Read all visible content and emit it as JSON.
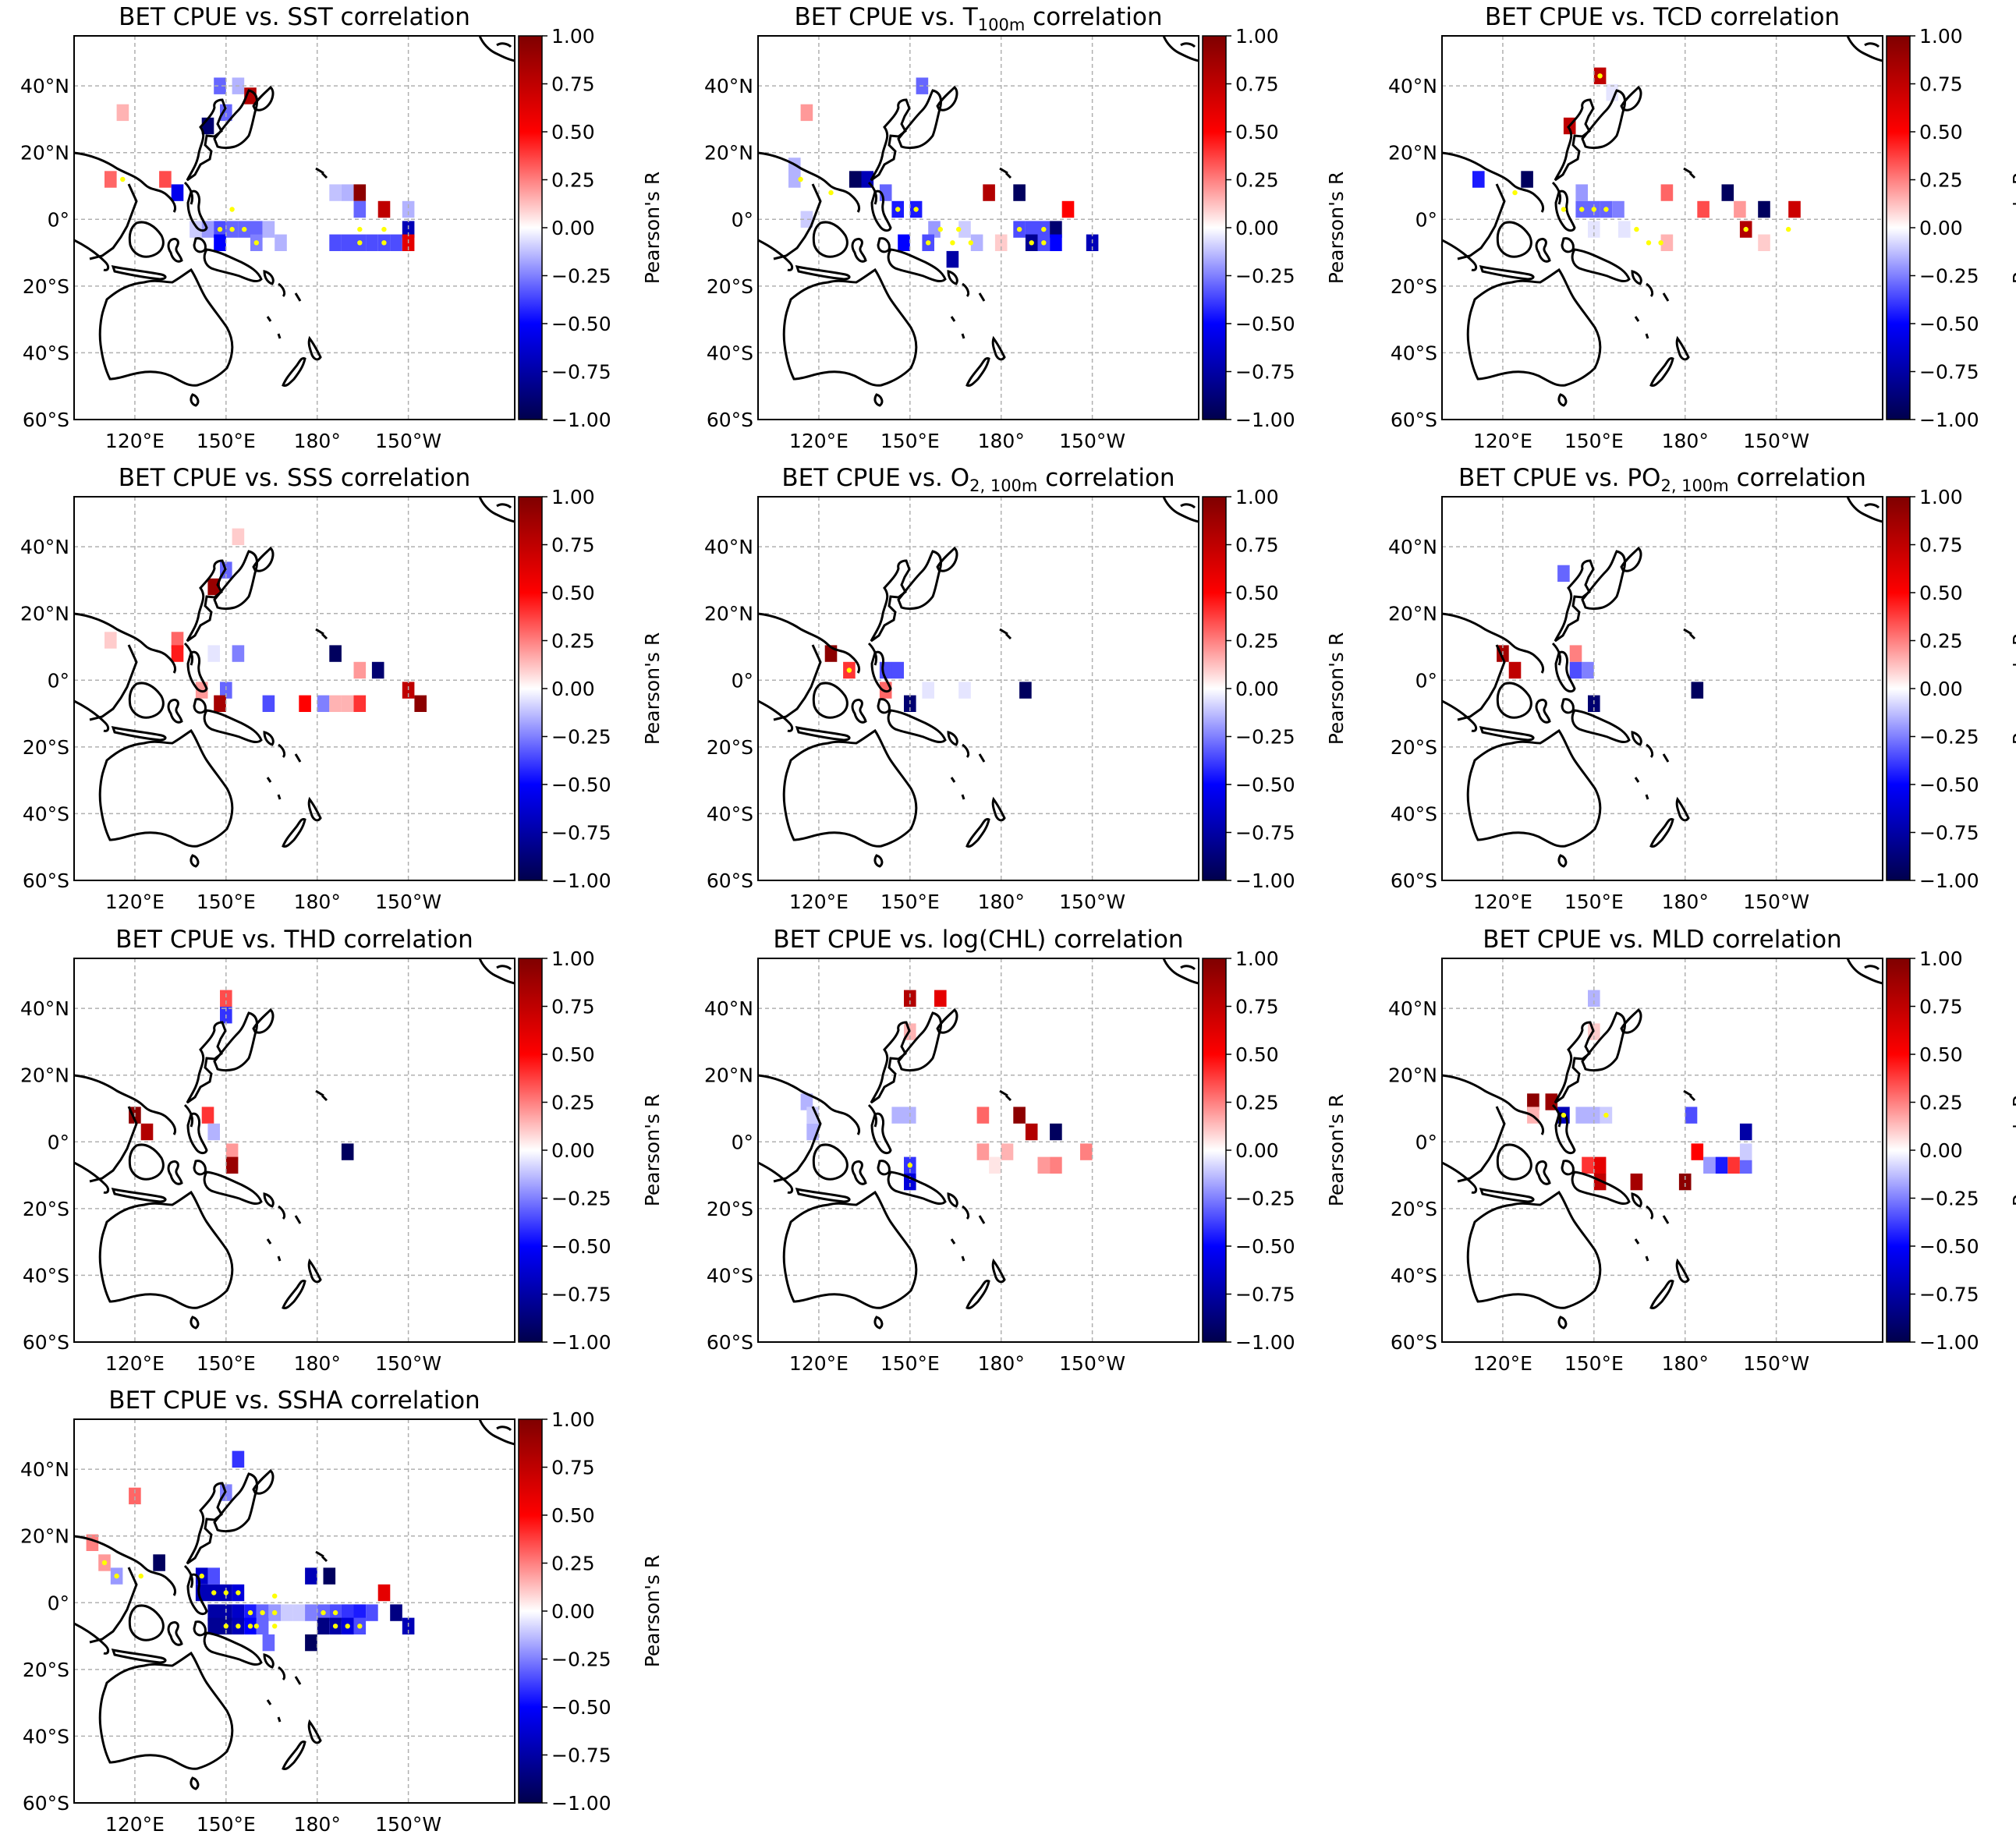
{
  "figure": {
    "colorbar": {
      "label": "Pearson's R",
      "ticks": [
        "1.00",
        "0.75",
        "0.50",
        "0.25",
        "0.00",
        "−0.25",
        "−0.50",
        "−0.75",
        "−1.00"
      ],
      "range": [
        -1,
        1
      ],
      "colormap": [
        "#00004c",
        "#0000ff",
        "#ffffff",
        "#ff0000",
        "#7f0000"
      ]
    },
    "axes": {
      "lon_ticks": [
        "120°E",
        "150°E",
        "180°",
        "150°W"
      ],
      "lon_values": [
        120,
        150,
        180,
        210
      ],
      "lat_ticks": [
        "40°N",
        "20°N",
        "0°",
        "20°S",
        "40°S",
        "60°S"
      ],
      "lat_values": [
        40,
        20,
        0,
        -20,
        -40,
        -60
      ],
      "lon_range": [
        100,
        245
      ],
      "lat_range": [
        -60,
        55
      ],
      "grid": "dashed"
    },
    "significance_color": "#ffff00"
  },
  "chart_data": [
    {
      "type": "heatmap",
      "title_pre": "BET CPUE vs. SST",
      "title_sub": "",
      "title_post": " correlation",
      "cells": [
        [
          148,
          40,
          -0.3
        ],
        [
          154,
          40,
          -0.15
        ],
        [
          158,
          37,
          0.8
        ],
        [
          116,
          32,
          0.15
        ],
        [
          144,
          28,
          -0.9
        ],
        [
          150,
          32,
          -0.3
        ],
        [
          112,
          12,
          0.3
        ],
        [
          130,
          12,
          0.35
        ],
        [
          134,
          8,
          -0.55
        ],
        [
          186,
          8,
          -0.12
        ],
        [
          190,
          8,
          -0.15
        ],
        [
          194,
          8,
          0.95
        ],
        [
          202,
          3,
          0.75
        ],
        [
          210,
          3,
          -0.15
        ],
        [
          194,
          3,
          -0.3
        ],
        [
          140,
          -3,
          -0.1
        ],
        [
          144,
          -3,
          -0.2
        ],
        [
          148,
          -3,
          -0.35
        ],
        [
          152,
          -3,
          -0.3
        ],
        [
          156,
          -3,
          -0.3
        ],
        [
          160,
          -3,
          -0.3
        ],
        [
          164,
          -3,
          -0.15
        ],
        [
          148,
          -7,
          -0.5
        ],
        [
          160,
          -7,
          -0.25
        ],
        [
          168,
          -7,
          -0.15
        ],
        [
          190,
          -7,
          -0.35
        ],
        [
          194,
          -7,
          -0.35
        ],
        [
          198,
          -7,
          -0.35
        ],
        [
          202,
          -7,
          -0.35
        ],
        [
          206,
          -7,
          -0.35
        ],
        [
          210,
          -3,
          -0.7
        ],
        [
          210,
          -7,
          0.6
        ],
        [
          186,
          -7,
          -0.35
        ]
      ],
      "sig": [
        [
          148,
          -3
        ],
        [
          152,
          -3
        ],
        [
          156,
          -3
        ],
        [
          160,
          -7
        ],
        [
          152,
          3
        ],
        [
          194,
          -3
        ],
        [
          194,
          -7
        ],
        [
          202,
          -3
        ],
        [
          202,
          -7
        ],
        [
          116,
          12
        ]
      ]
    },
    {
      "type": "heatmap",
      "title_pre": "BET CPUE vs. T",
      "title_sub": "100m",
      "title_post": " correlation",
      "cells": [
        [
          154,
          40,
          -0.3
        ],
        [
          116,
          32,
          0.2
        ],
        [
          112,
          12,
          -0.15
        ],
        [
          112,
          16,
          -0.15
        ],
        [
          132,
          12,
          -0.95
        ],
        [
          136,
          12,
          -0.7
        ],
        [
          142,
          8,
          -0.3
        ],
        [
          146,
          3,
          -0.45
        ],
        [
          152,
          3,
          -0.45
        ],
        [
          158,
          -3,
          -0.2
        ],
        [
          148,
          -7,
          -0.5
        ],
        [
          156,
          -7,
          -0.35
        ],
        [
          164,
          -12,
          -0.75
        ],
        [
          172,
          -7,
          -0.15
        ],
        [
          176,
          8,
          0.8
        ],
        [
          186,
          8,
          -0.95
        ],
        [
          186,
          -3,
          -0.35
        ],
        [
          190,
          -3,
          -0.35
        ],
        [
          194,
          -3,
          -0.35
        ],
        [
          198,
          -3,
          -0.9
        ],
        [
          202,
          3,
          0.5
        ],
        [
          198,
          -7,
          -0.5
        ],
        [
          190,
          -7,
          -0.8
        ],
        [
          194,
          -7,
          -0.35
        ],
        [
          210,
          -7,
          -0.7
        ],
        [
          180,
          -7,
          0.1
        ],
        [
          116,
          0,
          -0.1
        ],
        [
          168,
          -3,
          -0.1
        ]
      ],
      "sig": [
        [
          146,
          3
        ],
        [
          152,
          3
        ],
        [
          160,
          -3
        ],
        [
          166,
          -3
        ],
        [
          170,
          -7
        ],
        [
          164,
          -7
        ],
        [
          186,
          -3
        ],
        [
          194,
          -3
        ],
        [
          190,
          -7
        ],
        [
          194,
          -7
        ],
        [
          124,
          8
        ],
        [
          114,
          12
        ],
        [
          156,
          -7
        ]
      ]
    },
    {
      "type": "heatmap",
      "title_pre": "BET CPUE vs. TCD",
      "title_sub": "",
      "title_post": " correlation",
      "cells": [
        [
          152,
          43,
          0.75
        ],
        [
          156,
          38,
          -0.05
        ],
        [
          142,
          28,
          0.75
        ],
        [
          112,
          12,
          -0.45
        ],
        [
          128,
          12,
          -0.95
        ],
        [
          146,
          8,
          -0.2
        ],
        [
          146,
          3,
          -0.3
        ],
        [
          150,
          3,
          -0.3
        ],
        [
          154,
          3,
          -0.3
        ],
        [
          158,
          3,
          -0.25
        ],
        [
          174,
          8,
          0.3
        ],
        [
          186,
          3,
          0.35
        ],
        [
          194,
          8,
          -0.95
        ],
        [
          198,
          3,
          0.2
        ],
        [
          206,
          3,
          -0.95
        ],
        [
          216,
          3,
          0.7
        ],
        [
          200,
          -3,
          0.8
        ],
        [
          206,
          -7,
          0.1
        ],
        [
          174,
          -7,
          0.15
        ],
        [
          160,
          -3,
          -0.05
        ],
        [
          150,
          -3,
          -0.05
        ]
      ],
      "sig": [
        [
          152,
          43
        ],
        [
          146,
          3
        ],
        [
          150,
          3
        ],
        [
          154,
          3
        ],
        [
          140,
          3
        ],
        [
          164,
          -3
        ],
        [
          168,
          -7
        ],
        [
          172,
          -7
        ],
        [
          200,
          -3
        ],
        [
          214,
          -3
        ],
        [
          124,
          8
        ]
      ]
    },
    {
      "type": "heatmap",
      "title_pre": "BET CPUE vs. SSS",
      "title_sub": "",
      "title_post": " correlation",
      "cells": [
        [
          154,
          43,
          0.1
        ],
        [
          150,
          33,
          -0.3
        ],
        [
          146,
          28,
          0.9
        ],
        [
          112,
          12,
          0.1
        ],
        [
          134,
          12,
          0.3
        ],
        [
          134,
          8,
          0.45
        ],
        [
          146,
          8,
          -0.05
        ],
        [
          154,
          8,
          -0.25
        ],
        [
          186,
          8,
          -0.95
        ],
        [
          200,
          3,
          -0.9
        ],
        [
          194,
          3,
          0.2
        ],
        [
          142,
          -3,
          0.2
        ],
        [
          150,
          -3,
          -0.3
        ],
        [
          148,
          -7,
          0.85
        ],
        [
          164,
          -7,
          -0.35
        ],
        [
          176,
          -7,
          0.5
        ],
        [
          182,
          -7,
          -0.25
        ],
        [
          186,
          -7,
          0.15
        ],
        [
          190,
          -7,
          0.15
        ],
        [
          194,
          -7,
          0.4
        ],
        [
          210,
          -3,
          0.75
        ],
        [
          214,
          -7,
          0.95
        ]
      ],
      "sig": []
    },
    {
      "type": "heatmap",
      "title_pre": "BET CPUE vs. O",
      "title_sub": "2, 100m",
      "title_post": " correlation",
      "cells": [
        [
          124,
          8,
          0.95
        ],
        [
          130,
          3,
          0.4
        ],
        [
          142,
          3,
          -0.35
        ],
        [
          146,
          3,
          -0.35
        ],
        [
          142,
          -3,
          0.3
        ],
        [
          150,
          -7,
          -0.9
        ],
        [
          188,
          -3,
          -0.95
        ],
        [
          156,
          -3,
          -0.05
        ],
        [
          168,
          -3,
          -0.05
        ]
      ],
      "sig": [
        [
          130,
          3
        ]
      ]
    },
    {
      "type": "heatmap",
      "title_pre": "BET CPUE vs. PO",
      "title_sub": "2, 100m",
      "title_post": " correlation",
      "cells": [
        [
          140,
          32,
          -0.3
        ],
        [
          120,
          8,
          0.85
        ],
        [
          124,
          3,
          0.75
        ],
        [
          144,
          8,
          0.25
        ],
        [
          144,
          3,
          -0.35
        ],
        [
          148,
          3,
          -0.25
        ],
        [
          150,
          -7,
          -0.9
        ],
        [
          184,
          -3,
          -0.95
        ]
      ],
      "sig": []
    },
    {
      "type": "heatmap",
      "title_pre": "BET CPUE vs. THD",
      "title_sub": "",
      "title_post": " correlation",
      "cells": [
        [
          150,
          43,
          0.35
        ],
        [
          150,
          38,
          -0.4
        ],
        [
          120,
          8,
          0.95
        ],
        [
          124,
          3,
          0.8
        ],
        [
          144,
          8,
          0.4
        ],
        [
          146,
          3,
          -0.15
        ],
        [
          152,
          -3,
          0.2
        ],
        [
          152,
          -7,
          0.9
        ],
        [
          190,
          -3,
          -0.95
        ]
      ],
      "sig": []
    },
    {
      "type": "heatmap",
      "title_pre": "BET CPUE vs. log(CHL)",
      "title_sub": "",
      "title_post": " correlation",
      "cells": [
        [
          150,
          43,
          0.8
        ],
        [
          160,
          43,
          0.6
        ],
        [
          150,
          33,
          0.15
        ],
        [
          116,
          12,
          -0.15
        ],
        [
          118,
          8,
          -0.1
        ],
        [
          118,
          3,
          -0.15
        ],
        [
          146,
          8,
          -0.15
        ],
        [
          150,
          8,
          -0.15
        ],
        [
          174,
          8,
          0.3
        ],
        [
          186,
          8,
          0.95
        ],
        [
          190,
          3,
          0.8
        ],
        [
          198,
          3,
          -0.95
        ],
        [
          174,
          -3,
          0.2
        ],
        [
          182,
          -3,
          0.15
        ],
        [
          208,
          -3,
          0.25
        ],
        [
          194,
          -7,
          0.2
        ],
        [
          198,
          -7,
          0.25
        ],
        [
          150,
          -7,
          -0.4
        ],
        [
          150,
          -12,
          -0.6
        ],
        [
          178,
          -7,
          0.05
        ]
      ],
      "sig": [
        [
          150,
          -7
        ]
      ]
    },
    {
      "type": "heatmap",
      "title_pre": "BET CPUE vs. MLD",
      "title_sub": "",
      "title_post": " correlation",
      "cells": [
        [
          150,
          43,
          -0.15
        ],
        [
          150,
          33,
          0.1
        ],
        [
          130,
          12,
          0.95
        ],
        [
          136,
          12,
          0.9
        ],
        [
          130,
          8,
          0.15
        ],
        [
          140,
          8,
          -0.7
        ],
        [
          146,
          8,
          -0.15
        ],
        [
          150,
          8,
          -0.15
        ],
        [
          154,
          8,
          -0.1
        ],
        [
          182,
          8,
          -0.35
        ],
        [
          148,
          -7,
          0.4
        ],
        [
          152,
          -7,
          0.6
        ],
        [
          152,
          -12,
          0.75
        ],
        [
          164,
          -12,
          0.85
        ],
        [
          180,
          -12,
          0.95
        ],
        [
          184,
          -3,
          0.5
        ],
        [
          188,
          -7,
          -0.2
        ],
        [
          192,
          -7,
          -0.45
        ],
        [
          196,
          -7,
          0.4
        ],
        [
          200,
          -7,
          -0.3
        ],
        [
          200,
          -3,
          -0.1
        ],
        [
          200,
          3,
          -0.75
        ]
      ],
      "sig": [
        [
          140,
          8
        ],
        [
          154,
          8
        ]
      ]
    },
    {
      "type": "heatmap",
      "title_pre": "BET CPUE vs. SSHA",
      "title_sub": "",
      "title_post": " correlation",
      "cells": [
        [
          154,
          43,
          -0.4
        ],
        [
          150,
          33,
          -0.25
        ],
        [
          120,
          32,
          0.3
        ],
        [
          106,
          18,
          0.25
        ],
        [
          110,
          12,
          0.2
        ],
        [
          114,
          8,
          -0.2
        ],
        [
          128,
          12,
          -0.95
        ],
        [
          142,
          8,
          -0.65
        ],
        [
          146,
          8,
          -0.35
        ],
        [
          178,
          8,
          -0.7
        ],
        [
          184,
          8,
          -0.95
        ],
        [
          142,
          3,
          -0.7
        ],
        [
          146,
          3,
          -0.7
        ],
        [
          150,
          3,
          -0.7
        ],
        [
          154,
          3,
          -0.6
        ],
        [
          146,
          -3,
          -0.75
        ],
        [
          150,
          -3,
          -0.75
        ],
        [
          154,
          -3,
          -0.65
        ],
        [
          158,
          -3,
          -0.45
        ],
        [
          162,
          -3,
          -0.3
        ],
        [
          166,
          -3,
          -0.2
        ],
        [
          170,
          -3,
          -0.1
        ],
        [
          174,
          -3,
          -0.1
        ],
        [
          178,
          -3,
          -0.25
        ],
        [
          182,
          -3,
          -0.3
        ],
        [
          186,
          -3,
          -0.35
        ],
        [
          190,
          -3,
          -0.4
        ],
        [
          194,
          -3,
          -0.45
        ],
        [
          198,
          -3,
          -0.35
        ],
        [
          146,
          -7,
          -0.8
        ],
        [
          150,
          -7,
          -0.8
        ],
        [
          154,
          -7,
          -0.7
        ],
        [
          158,
          -7,
          -0.5
        ],
        [
          162,
          -7,
          -0.3
        ],
        [
          182,
          -7,
          -0.85
        ],
        [
          186,
          -7,
          -0.75
        ],
        [
          190,
          -7,
          -0.6
        ],
        [
          194,
          -7,
          -0.35
        ],
        [
          202,
          3,
          0.6
        ],
        [
          206,
          -3,
          -0.85
        ],
        [
          210,
          -7,
          -0.7
        ],
        [
          164,
          -12,
          -0.3
        ],
        [
          178,
          -12,
          -0.95
        ]
      ],
      "sig": [
        [
          142,
          8
        ],
        [
          146,
          3
        ],
        [
          150,
          3
        ],
        [
          154,
          3
        ],
        [
          158,
          -3
        ],
        [
          162,
          -3
        ],
        [
          166,
          -3
        ],
        [
          150,
          -7
        ],
        [
          154,
          -7
        ],
        [
          158,
          -7
        ],
        [
          182,
          -3
        ],
        [
          186,
          -3
        ],
        [
          186,
          -7
        ],
        [
          190,
          -7
        ],
        [
          194,
          -7
        ],
        [
          110,
          12
        ],
        [
          114,
          8
        ],
        [
          122,
          8
        ],
        [
          160,
          -7
        ],
        [
          166,
          -7
        ],
        [
          166,
          2
        ]
      ]
    }
  ]
}
